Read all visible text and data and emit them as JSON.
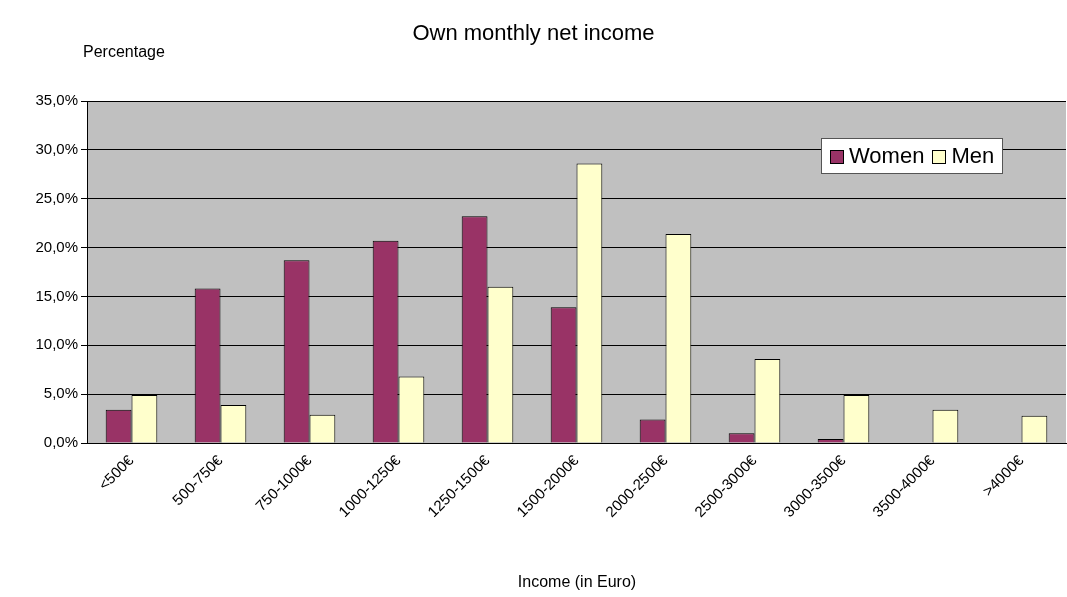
{
  "chart_data": {
    "type": "bar",
    "title": "Own monthly net income",
    "xlabel": "Income (in Euro)",
    "ylabel": "Percentage",
    "categories": [
      "<500€",
      "500-750€",
      "750-1000€",
      "1000-1250€",
      "1250-1500€",
      "1500-2000€",
      "2000-2500€",
      "2500-3000€",
      "3000-3500€",
      "3500-4000€",
      ">4000€"
    ],
    "series": [
      {
        "name": "Women",
        "color": "#993366",
        "values": [
          3.4,
          15.8,
          18.7,
          20.7,
          23.2,
          13.9,
          2.4,
          1.0,
          0.4,
          0,
          0
        ]
      },
      {
        "name": "Men",
        "color": "#ffffcc",
        "values": [
          4.9,
          3.9,
          2.9,
          6.8,
          16.0,
          28.6,
          21.4,
          8.6,
          4.9,
          3.4,
          2.8
        ]
      }
    ],
    "ylim": [
      0,
      35
    ],
    "yticks": [
      {
        "value": 0,
        "label": "0,0%"
      },
      {
        "value": 5,
        "label": "5,0%"
      },
      {
        "value": 10,
        "label": "10,0%"
      },
      {
        "value": 15,
        "label": "15,0%"
      },
      {
        "value": 20,
        "label": "20,0%"
      },
      {
        "value": 25,
        "label": "25,0%"
      },
      {
        "value": 30,
        "label": "30,0%"
      },
      {
        "value": 35,
        "label": "35,0%"
      }
    ],
    "grid": "y",
    "legend": "top right"
  }
}
